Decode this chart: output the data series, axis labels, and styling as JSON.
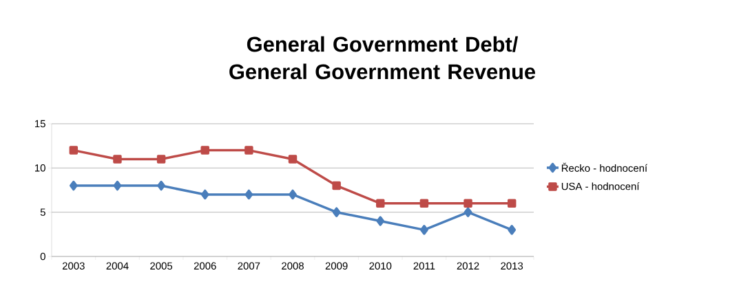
{
  "chart_data": {
    "type": "line",
    "title": "General Government Debt/ General Government Revenue",
    "categories": [
      "2003",
      "2004",
      "2005",
      "2006",
      "2007",
      "2008",
      "2009",
      "2010",
      "2011",
      "2012",
      "2013"
    ],
    "series": [
      {
        "name": "Řecko - hodnocení",
        "color": "#4a7ebb",
        "marker": "diamond",
        "values": [
          8,
          8,
          8,
          7,
          7,
          7,
          5,
          4,
          3,
          5,
          3
        ]
      },
      {
        "name": "USA - hodnocení",
        "color": "#be4b48",
        "marker": "square",
        "values": [
          12,
          11,
          11,
          12,
          12,
          11,
          8,
          6,
          6,
          6,
          6
        ]
      }
    ],
    "ylim": [
      0,
      15
    ],
    "yticks": [
      0,
      5,
      10,
      15
    ],
    "grid": "y",
    "legend": "right",
    "line_style": "solid"
  }
}
